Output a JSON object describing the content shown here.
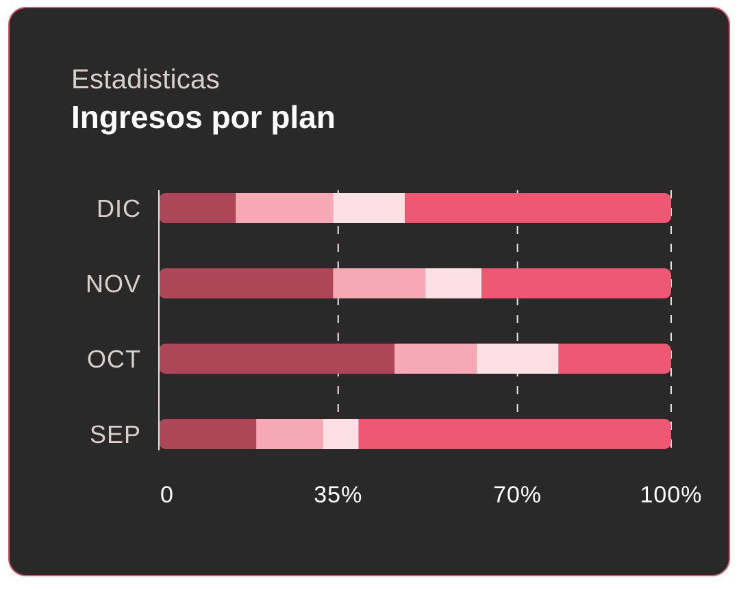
{
  "card": {
    "subtitle": "Estadisticas",
    "title": "Ingresos por plan"
  },
  "colors": {
    "background": "#292929",
    "border": "#d9566e",
    "axis": "#e8e2e2",
    "segments": [
      "#ad4757",
      "#f7a8b5",
      "#fde0e5",
      "#ee5873"
    ]
  },
  "chart_data": {
    "type": "bar",
    "orientation": "horizontal",
    "stacked": true,
    "title": "Ingresos por plan",
    "subtitle": "Estadisticas",
    "categories": [
      "DIC",
      "NOV",
      "OCT",
      "SEP"
    ],
    "series": [
      {
        "values": [
          15,
          34,
          46,
          19
        ]
      },
      {
        "values": [
          19,
          18,
          16,
          13
        ]
      },
      {
        "values": [
          14,
          11,
          16,
          7
        ]
      },
      {
        "values": [
          52,
          37,
          22,
          61
        ]
      }
    ],
    "xlim": [
      0,
      100
    ],
    "xticks": [
      0,
      35,
      70,
      100
    ],
    "xtick_labels": [
      "0",
      "35%",
      "70%",
      "100%"
    ],
    "xlabel": "",
    "ylabel": "",
    "grid": true,
    "grid_style": "dashed",
    "legend": "none"
  }
}
